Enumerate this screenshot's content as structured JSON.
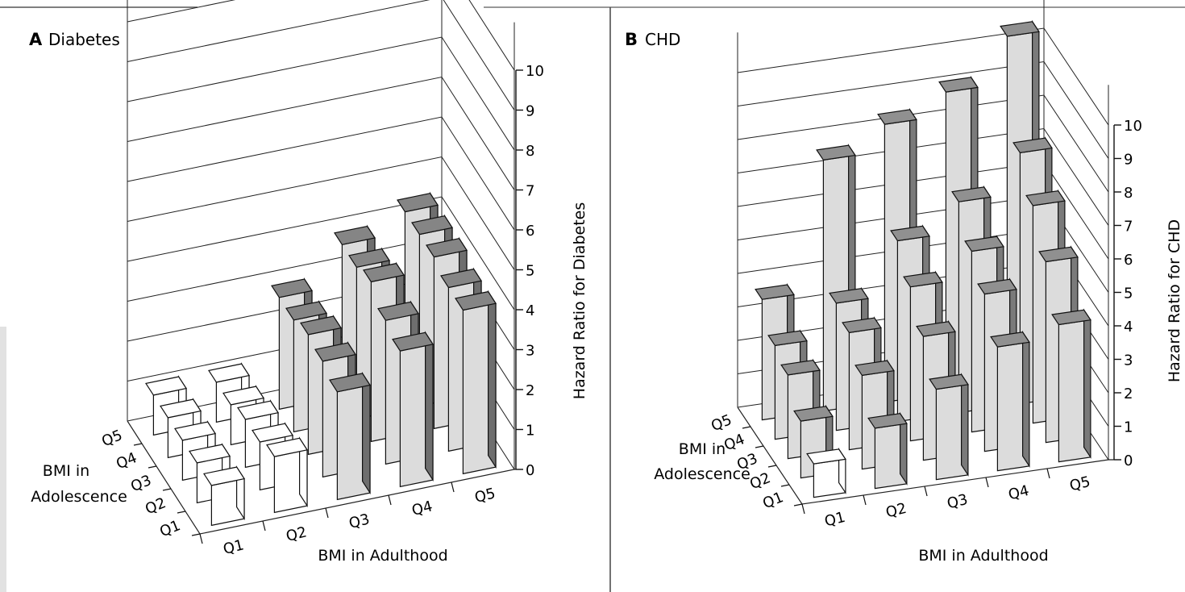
{
  "chart_data": [
    {
      "type": "bar3d",
      "panel_letter": "A",
      "title": "Diabetes",
      "xlabel": "BMI in Adulthood",
      "ylabel_lines": [
        "BMI in",
        "Adolescence"
      ],
      "zlabel": "Hazard Ratio for Diabetes",
      "x_categories": [
        "Q1",
        "Q2",
        "Q3",
        "Q4",
        "Q5"
      ],
      "y_categories": [
        "Q1",
        "Q2",
        "Q3",
        "Q4",
        "Q5"
      ],
      "z_ticks": [
        "0",
        "1",
        "2",
        "3",
        "4",
        "5",
        "6",
        "7",
        "8",
        "9",
        "10"
      ],
      "zlim": [
        0,
        10
      ],
      "values": [
        [
          1.0,
          1.4,
          2.7,
          3.4,
          4.1
        ],
        [
          1.0,
          1.2,
          2.9,
          3.6,
          4.1
        ],
        [
          1.0,
          1.2,
          3.0,
          4.0,
          4.3
        ],
        [
          1.0,
          1.0,
          2.8,
          3.8,
          4.3
        ],
        [
          1.0,
          1.0,
          2.8,
          3.8,
          4.3
        ]
      ]
    },
    {
      "type": "bar3d",
      "panel_letter": "B",
      "title": "CHD",
      "xlabel": "BMI in Adulthood",
      "ylabel_lines": [
        "BMI in",
        "Adolescence"
      ],
      "zlabel": "Hazard Ratio for CHD",
      "x_categories": [
        "Q1",
        "Q2",
        "Q3",
        "Q4",
        "Q5"
      ],
      "y_categories": [
        "Q1",
        "Q2",
        "Q3",
        "Q4",
        "Q5"
      ],
      "z_ticks": [
        "0",
        "1",
        "2",
        "3",
        "4",
        "5",
        "6",
        "7",
        "8",
        "9",
        "10"
      ],
      "zlim": [
        0,
        10
      ],
      "values": [
        [
          1.0,
          1.8,
          2.7,
          3.7,
          4.1
        ],
        [
          1.7,
          2.8,
          3.7,
          4.7,
          5.4
        ],
        [
          2.5,
          3.5,
          4.6,
          5.4,
          6.5
        ],
        [
          2.8,
          3.8,
          5.4,
          6.3,
          7.5
        ],
        [
          3.6,
          7.5,
          8.3,
          9.0,
          10.4
        ]
      ]
    }
  ]
}
